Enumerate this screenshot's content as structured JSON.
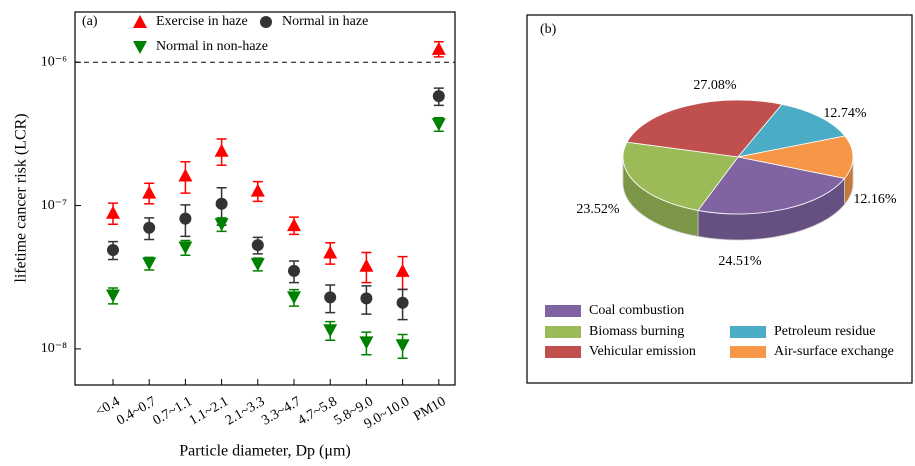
{
  "chart_data": [
    {
      "type": "scatter",
      "label": "(a)",
      "xlabel": "Particle diameter, Dp (μm)",
      "ylabel": "lifetime cancer risk (LCR)",
      "categories": [
        "<0.4",
        "0.4~0.7",
        "0.7~1.1",
        "1.1~2.1",
        "2.1~3.3",
        "3.3~4.7",
        "4.7~5.8",
        "5.8~9.0",
        "9.0~10.0",
        "PM10"
      ],
      "yscale": "log",
      "ylim": [
        5.6e-09,
        2.24e-06
      ],
      "yticks": [
        {
          "value": 1e-08,
          "label": "10⁻⁸"
        },
        {
          "value": 1e-07,
          "label": "10⁻⁷"
        },
        {
          "value": 1e-06,
          "label": "10⁻⁶"
        }
      ],
      "reference_line": 1e-06,
      "series": [
        {
          "name": "Exercise in haze",
          "color": "#ff0000",
          "marker": "triangle-up",
          "values": [
            8.9e-08,
            1.23e-07,
            1.62e-07,
            2.41e-07,
            1.27e-07,
            7.3e-08,
            4.7e-08,
            3.8e-08,
            3.5e-08,
            1.24e-06
          ],
          "errors": [
            1.5e-08,
            2e-08,
            4e-08,
            5e-08,
            2e-08,
            1e-08,
            8e-09,
            9e-09,
            9e-09,
            1.5e-07
          ]
        },
        {
          "name": "Normal in haze",
          "color": "#333333",
          "marker": "circle",
          "values": [
            4.9e-08,
            7e-08,
            8.1e-08,
            1.03e-07,
            5.3e-08,
            3.5e-08,
            2.29e-08,
            2.25e-08,
            2.1e-08,
            5.8e-07
          ],
          "errors": [
            7e-09,
            1.2e-08,
            2e-08,
            3e-08,
            7e-09,
            6e-09,
            5e-09,
            5e-09,
            5e-09,
            8e-08
          ]
        },
        {
          "name": "Normal in non-haze",
          "color": "#008000",
          "marker": "triangle-down",
          "values": [
            2.36e-08,
            3.95e-08,
            5.1e-08,
            7.4e-08,
            3.9e-08,
            2.29e-08,
            1.35e-08,
            1.11e-08,
            1.06e-08,
            3.7e-07
          ],
          "errors": [
            3e-09,
            4e-09,
            6e-09,
            8e-09,
            4e-09,
            3e-09,
            2e-09,
            2e-09,
            2e-09,
            4e-08
          ]
        }
      ]
    },
    {
      "type": "pie",
      "label": "(b)",
      "categories": [
        "Vehicular emission",
        "Petroleum residue",
        "Air-surface exchange",
        "Coal combustion",
        "Biomass burning"
      ],
      "values": [
        27.08,
        12.74,
        12.16,
        24.51,
        23.52
      ],
      "value_labels": [
        "27.08%",
        "12.74%",
        "12.16%",
        "24.51%",
        "23.52%"
      ],
      "colors": [
        "#c0504d",
        "#4bacc6",
        "#f79646",
        "#8064a2",
        "#9bbb59"
      ]
    }
  ]
}
